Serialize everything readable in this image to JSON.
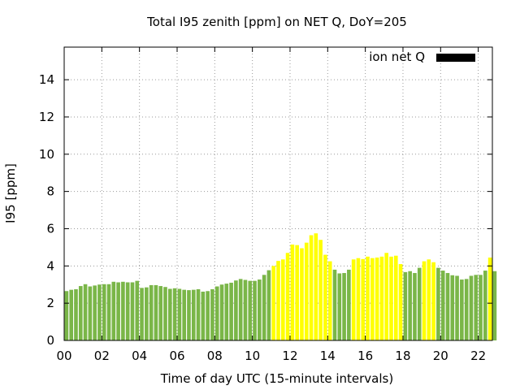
{
  "chart_data": {
    "type": "bar",
    "title": "Total I95 zenith [ppm] on NET Q, DoY=205",
    "xlabel": "Time of day UTC (15-minute intervals)",
    "ylabel": "I95 [ppm]",
    "xlim": [
      0,
      22.75
    ],
    "ylim": [
      0,
      15.75
    ],
    "xticks": [
      0,
      2,
      4,
      6,
      8,
      10,
      12,
      14,
      16,
      18,
      20,
      22
    ],
    "xtick_labels": [
      "00",
      "02",
      "04",
      "06",
      "08",
      "10",
      "12",
      "14",
      "16",
      "18",
      "20",
      "22"
    ],
    "yticks": [
      0,
      2,
      4,
      6,
      8,
      10,
      12,
      14
    ],
    "ytick_labels": [
      "0",
      "2",
      "4",
      "6",
      "8",
      "10",
      "12",
      "14"
    ],
    "grid": true,
    "legend": {
      "placement": "top-right",
      "label": "ion net Q",
      "color": "#000000"
    },
    "interval_hours": 0.25,
    "colors": {
      "green": "#7ab648",
      "yellow": "#ffff00"
    },
    "values": [
      2.65,
      2.72,
      2.75,
      2.92,
      3.02,
      2.9,
      2.95,
      3.0,
      3.02,
      3.02,
      3.15,
      3.12,
      3.15,
      3.12,
      3.12,
      3.2,
      2.82,
      2.85,
      2.97,
      2.97,
      2.92,
      2.87,
      2.77,
      2.8,
      2.77,
      2.72,
      2.7,
      2.72,
      2.75,
      2.62,
      2.65,
      2.75,
      2.9,
      3.0,
      3.05,
      3.1,
      3.22,
      3.3,
      3.25,
      3.2,
      3.2,
      3.27,
      3.52,
      3.77,
      4.0,
      4.27,
      4.35,
      4.7,
      5.15,
      5.12,
      4.95,
      5.25,
      5.65,
      5.75,
      5.4,
      4.6,
      4.25,
      3.8,
      3.6,
      3.62,
      3.8,
      4.35,
      4.42,
      4.37,
      4.5,
      4.42,
      4.45,
      4.5,
      4.7,
      4.5,
      4.55,
      4.1,
      3.67,
      3.72,
      3.62,
      3.9,
      4.25,
      4.35,
      4.2,
      3.9,
      3.75,
      3.62,
      3.5,
      3.47,
      3.27,
      3.3,
      3.47,
      3.52,
      3.52,
      3.75,
      4.45,
      3.72
    ],
    "bar_colors": [
      "green",
      "green",
      "green",
      "green",
      "green",
      "green",
      "green",
      "green",
      "green",
      "green",
      "green",
      "green",
      "green",
      "green",
      "green",
      "green",
      "green",
      "green",
      "green",
      "green",
      "green",
      "green",
      "green",
      "green",
      "green",
      "green",
      "green",
      "green",
      "green",
      "green",
      "green",
      "green",
      "green",
      "green",
      "green",
      "green",
      "green",
      "green",
      "green",
      "green",
      "green",
      "green",
      "green",
      "green",
      "yellow",
      "yellow",
      "yellow",
      "yellow",
      "yellow",
      "yellow",
      "yellow",
      "yellow",
      "yellow",
      "yellow",
      "yellow",
      "yellow",
      "yellow",
      "green",
      "green",
      "green",
      "green",
      "yellow",
      "yellow",
      "yellow",
      "yellow",
      "yellow",
      "yellow",
      "yellow",
      "yellow",
      "yellow",
      "yellow",
      "yellow",
      "green",
      "green",
      "green",
      "green",
      "yellow",
      "yellow",
      "yellow",
      "green",
      "green",
      "green",
      "green",
      "green",
      "green",
      "green",
      "green",
      "green",
      "green",
      "green",
      "yellow",
      "green"
    ]
  }
}
